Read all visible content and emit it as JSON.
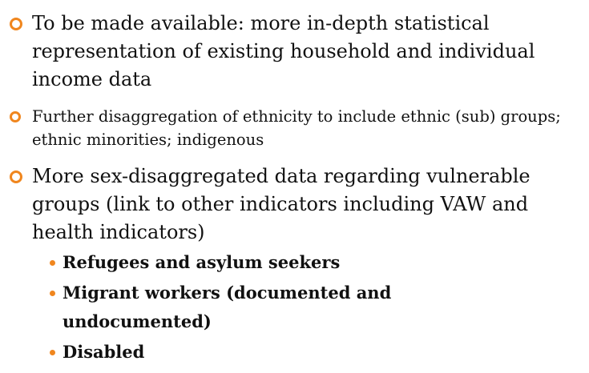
{
  "items": [
    {
      "text": "To be made available: more in-depth statistical representation of existing household and individual income data"
    },
    {
      "text": "Further disaggregation of ethnicity to include ethnic (sub) groups; ethnic minorities; indigenous"
    },
    {
      "text": "More sex-disaggregated data regarding vulnerable groups (link to other indicators including VAW and health indicators)",
      "subitems": [
        "Refugees and asylum seekers",
        "Migrant workers (documented and undocumented)",
        "Disabled"
      ]
    }
  ]
}
